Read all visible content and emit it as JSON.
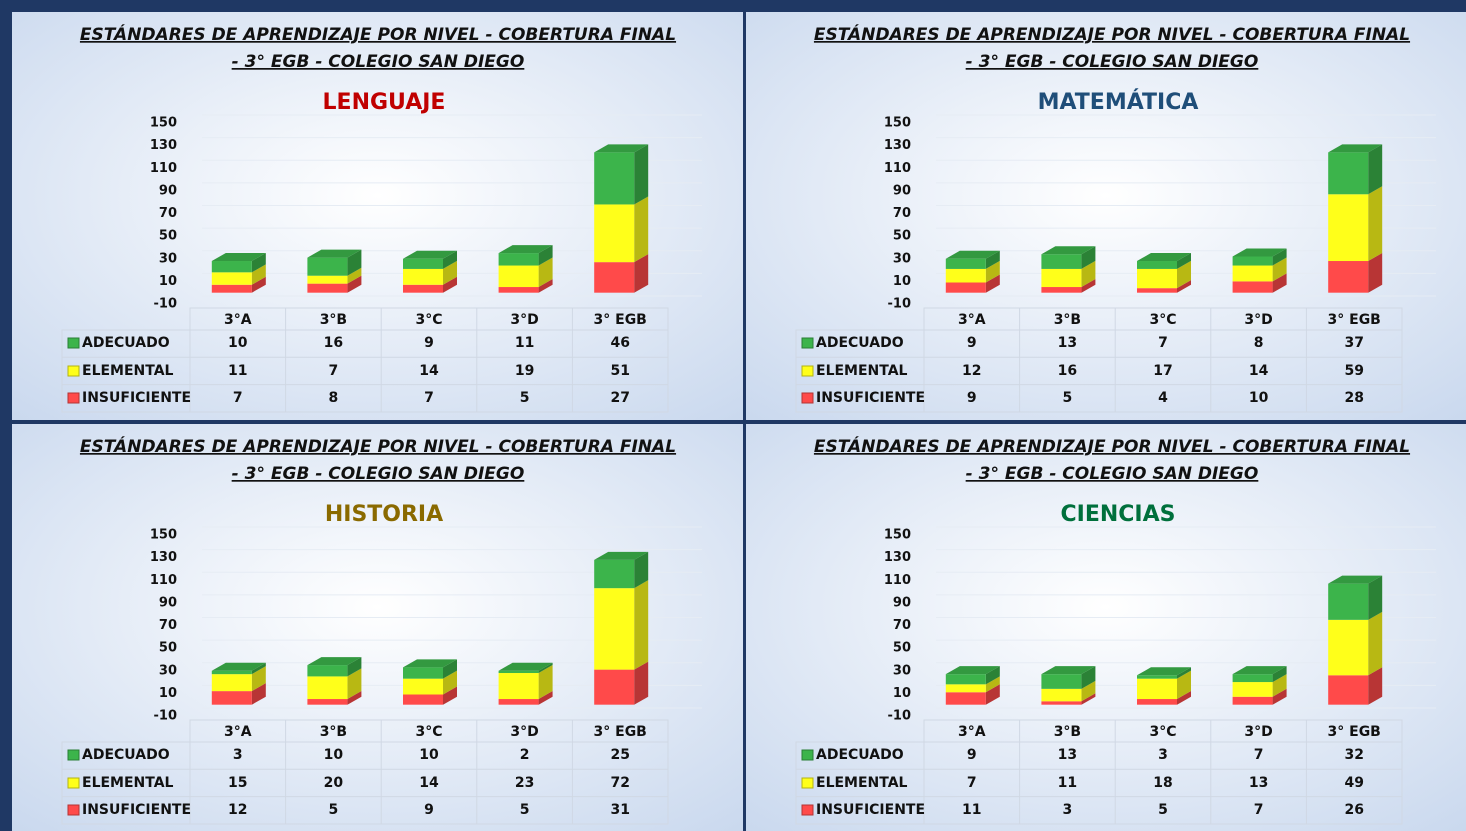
{
  "chart_data": [
    {
      "type": "bar3d_stacked",
      "title": [
        "ESTÁNDARES DE APRENDIZAJE POR NIVEL - COBERTURA FINAL",
        "- 3° EGB - COLEGIO SAN DIEGO"
      ],
      "subtitle": "LENGUAJE",
      "subtitle_color": "#c00000",
      "categories": [
        "3°A",
        "3°B",
        "3°C",
        "3°D",
        "3° EGB"
      ],
      "series": [
        {
          "name": "ADECUADO",
          "color": "#3cb44b",
          "values": [
            10,
            16,
            9,
            11,
            46
          ]
        },
        {
          "name": "ELEMENTAL",
          "color": "#ffff1a",
          "values": [
            11,
            7,
            14,
            19,
            51
          ]
        },
        {
          "name": "INSUFICIENTE",
          "color": "#ff4a4a",
          "values": [
            7,
            8,
            7,
            5,
            27
          ]
        }
      ],
      "ylim": [
        -10,
        150
      ],
      "yticks": [
        -10,
        10,
        30,
        50,
        70,
        90,
        110,
        130,
        150
      ],
      "grid": true
    },
    {
      "type": "bar3d_stacked",
      "title": [
        "ESTÁNDARES DE APRENDIZAJE POR NIVEL - COBERTURA FINAL",
        "- 3° EGB - COLEGIO SAN DIEGO"
      ],
      "subtitle": "MATEMÁTICA",
      "subtitle_color": "#1f4e79",
      "categories": [
        "3°A",
        "3°B",
        "3°C",
        "3°D",
        "3° EGB"
      ],
      "series": [
        {
          "name": "ADECUADO",
          "color": "#3cb44b",
          "values": [
            9,
            13,
            7,
            8,
            37
          ]
        },
        {
          "name": "ELEMENTAL",
          "color": "#ffff1a",
          "values": [
            12,
            16,
            17,
            14,
            59
          ]
        },
        {
          "name": "INSUFICIENTE",
          "color": "#ff4a4a",
          "values": [
            9,
            5,
            4,
            10,
            28
          ]
        }
      ],
      "ylim": [
        -10,
        150
      ],
      "yticks": [
        -10,
        10,
        30,
        50,
        70,
        90,
        110,
        130,
        150
      ],
      "grid": true
    },
    {
      "type": "bar3d_stacked",
      "title": [
        "ESTÁNDARES DE APRENDIZAJE POR NIVEL - COBERTURA FINAL",
        "- 3° EGB - COLEGIO SAN DIEGO"
      ],
      "subtitle": "HISTORIA",
      "subtitle_color": "#8a6a00",
      "categories": [
        "3°A",
        "3°B",
        "3°C",
        "3°D",
        "3° EGB"
      ],
      "series": [
        {
          "name": "ADECUADO",
          "color": "#3cb44b",
          "values": [
            3,
            10,
            10,
            2,
            25
          ]
        },
        {
          "name": "ELEMENTAL",
          "color": "#ffff1a",
          "values": [
            15,
            20,
            14,
            23,
            72
          ]
        },
        {
          "name": "INSUFICIENTE",
          "color": "#ff4a4a",
          "values": [
            12,
            5,
            9,
            5,
            31
          ]
        }
      ],
      "ylim": [
        -10,
        150
      ],
      "yticks": [
        -10,
        10,
        30,
        50,
        70,
        90,
        110,
        130,
        150
      ],
      "grid": true
    },
    {
      "type": "bar3d_stacked",
      "title": [
        "ESTÁNDARES DE APRENDIZAJE POR NIVEL - COBERTURA FINAL",
        "- 3° EGB - COLEGIO SAN DIEGO"
      ],
      "subtitle": "CIENCIAS",
      "subtitle_color": "#00703c",
      "categories": [
        "3°A",
        "3°B",
        "3°C",
        "3°D",
        "3° EGB"
      ],
      "series": [
        {
          "name": "ADECUADO",
          "color": "#3cb44b",
          "values": [
            9,
            13,
            3,
            7,
            32
          ]
        },
        {
          "name": "ELEMENTAL",
          "color": "#ffff1a",
          "values": [
            7,
            11,
            18,
            13,
            49
          ]
        },
        {
          "name": "INSUFICIENTE",
          "color": "#ff4a4a",
          "values": [
            11,
            3,
            5,
            7,
            26
          ]
        }
      ],
      "ylim": [
        -10,
        150
      ],
      "yticks": [
        -10,
        10,
        30,
        50,
        70,
        90,
        110,
        130,
        150
      ],
      "grid": true
    }
  ]
}
